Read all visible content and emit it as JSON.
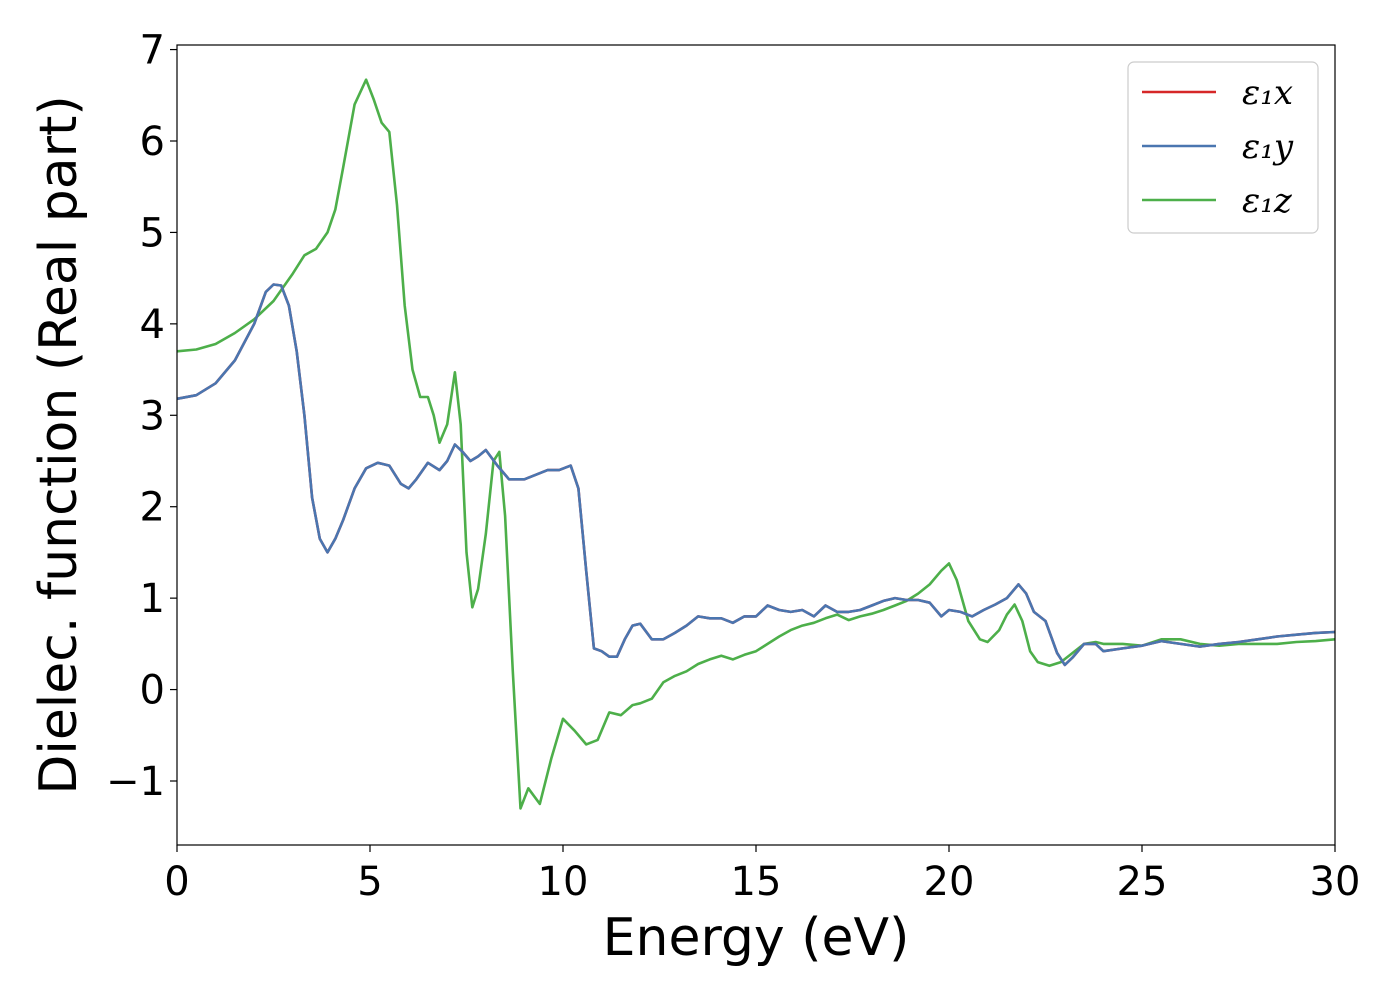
{
  "chart_data": {
    "type": "line",
    "title": "",
    "xlabel": "Energy (eV)",
    "ylabel": "Dielec. function (Real part)",
    "xlim": [
      0,
      30
    ],
    "ylim": [
      -1.7,
      7.05
    ],
    "xticks": [
      0,
      5,
      10,
      15,
      20,
      25,
      30
    ],
    "xtick_labels": [
      "0",
      "5",
      "10",
      "15",
      "20",
      "25",
      "30"
    ],
    "yticks": [
      -1,
      0,
      1,
      2,
      3,
      4,
      5,
      6,
      7
    ],
    "ytick_labels": [
      "−1",
      "0",
      "1",
      "2",
      "3",
      "4",
      "5",
      "6",
      "7"
    ],
    "grid": false,
    "legend_position": "top-right",
    "series": [
      {
        "name": "ε₁x",
        "color": "#d62728",
        "x": [
          0,
          0.5,
          1,
          1.5,
          2,
          2.3,
          2.5,
          2.7,
          2.9,
          3.1,
          3.3,
          3.5,
          3.7,
          3.9,
          4.1,
          4.3,
          4.6,
          4.9,
          5.2,
          5.5,
          5.8,
          6.0,
          6.2,
          6.5,
          6.8,
          7.0,
          7.2,
          7.4,
          7.6,
          7.8,
          8.0,
          8.3,
          8.6,
          9.0,
          9.3,
          9.6,
          9.9,
          10.2,
          10.4,
          10.6,
          10.8,
          11.0,
          11.2,
          11.4,
          11.6,
          11.8,
          12.0,
          12.3,
          12.6,
          12.9,
          13.2,
          13.5,
          13.8,
          14.1,
          14.4,
          14.7,
          15.0,
          15.3,
          15.6,
          15.9,
          16.2,
          16.5,
          16.8,
          17.1,
          17.4,
          17.7,
          18.0,
          18.3,
          18.6,
          18.9,
          19.2,
          19.5,
          19.8,
          20.0,
          20.3,
          20.6,
          20.9,
          21.2,
          21.5,
          21.8,
          22.0,
          22.2,
          22.5,
          22.8,
          23.0,
          23.2,
          23.5,
          23.8,
          24.0,
          24.5,
          25.0,
          25.5,
          26.0,
          26.5,
          27.0,
          27.5,
          28.0,
          28.5,
          29.0,
          29.5,
          30.0
        ],
        "y": [
          3.18,
          3.22,
          3.35,
          3.6,
          4.0,
          4.35,
          4.43,
          4.42,
          4.2,
          3.7,
          3.0,
          2.1,
          1.65,
          1.5,
          1.65,
          1.85,
          2.2,
          2.42,
          2.48,
          2.45,
          2.25,
          2.2,
          2.3,
          2.48,
          2.4,
          2.5,
          2.68,
          2.6,
          2.5,
          2.55,
          2.62,
          2.45,
          2.3,
          2.3,
          2.35,
          2.4,
          2.4,
          2.45,
          2.2,
          1.3,
          0.45,
          0.42,
          0.36,
          0.36,
          0.55,
          0.7,
          0.72,
          0.55,
          0.55,
          0.62,
          0.7,
          0.8,
          0.78,
          0.78,
          0.73,
          0.8,
          0.8,
          0.92,
          0.87,
          0.85,
          0.87,
          0.8,
          0.92,
          0.85,
          0.85,
          0.87,
          0.92,
          0.97,
          1.0,
          0.98,
          0.98,
          0.95,
          0.8,
          0.87,
          0.85,
          0.8,
          0.87,
          0.93,
          1.0,
          1.15,
          1.05,
          0.85,
          0.75,
          0.4,
          0.27,
          0.35,
          0.5,
          0.5,
          0.42,
          0.45,
          0.48,
          0.53,
          0.5,
          0.47,
          0.5,
          0.52,
          0.55,
          0.58,
          0.6,
          0.62,
          0.63
        ]
      },
      {
        "name": "ε₁y",
        "color": "#4a76b0",
        "x": [
          0,
          0.5,
          1,
          1.5,
          2,
          2.3,
          2.5,
          2.7,
          2.9,
          3.1,
          3.3,
          3.5,
          3.7,
          3.9,
          4.1,
          4.3,
          4.6,
          4.9,
          5.2,
          5.5,
          5.8,
          6.0,
          6.2,
          6.5,
          6.8,
          7.0,
          7.2,
          7.4,
          7.6,
          7.8,
          8.0,
          8.3,
          8.6,
          9.0,
          9.3,
          9.6,
          9.9,
          10.2,
          10.4,
          10.6,
          10.8,
          11.0,
          11.2,
          11.4,
          11.6,
          11.8,
          12.0,
          12.3,
          12.6,
          12.9,
          13.2,
          13.5,
          13.8,
          14.1,
          14.4,
          14.7,
          15.0,
          15.3,
          15.6,
          15.9,
          16.2,
          16.5,
          16.8,
          17.1,
          17.4,
          17.7,
          18.0,
          18.3,
          18.6,
          18.9,
          19.2,
          19.5,
          19.8,
          20.0,
          20.3,
          20.6,
          20.9,
          21.2,
          21.5,
          21.8,
          22.0,
          22.2,
          22.5,
          22.8,
          23.0,
          23.2,
          23.5,
          23.8,
          24.0,
          24.5,
          25.0,
          25.5,
          26.0,
          26.5,
          27.0,
          27.5,
          28.0,
          28.5,
          29.0,
          29.5,
          30.0
        ],
        "y": [
          3.18,
          3.22,
          3.35,
          3.6,
          4.0,
          4.35,
          4.43,
          4.42,
          4.2,
          3.7,
          3.0,
          2.1,
          1.65,
          1.5,
          1.65,
          1.85,
          2.2,
          2.42,
          2.48,
          2.45,
          2.25,
          2.2,
          2.3,
          2.48,
          2.4,
          2.5,
          2.68,
          2.6,
          2.5,
          2.55,
          2.62,
          2.45,
          2.3,
          2.3,
          2.35,
          2.4,
          2.4,
          2.45,
          2.2,
          1.3,
          0.45,
          0.42,
          0.36,
          0.36,
          0.55,
          0.7,
          0.72,
          0.55,
          0.55,
          0.62,
          0.7,
          0.8,
          0.78,
          0.78,
          0.73,
          0.8,
          0.8,
          0.92,
          0.87,
          0.85,
          0.87,
          0.8,
          0.92,
          0.85,
          0.85,
          0.87,
          0.92,
          0.97,
          1.0,
          0.98,
          0.98,
          0.95,
          0.8,
          0.87,
          0.85,
          0.8,
          0.87,
          0.93,
          1.0,
          1.15,
          1.05,
          0.85,
          0.75,
          0.4,
          0.27,
          0.35,
          0.5,
          0.5,
          0.42,
          0.45,
          0.48,
          0.53,
          0.5,
          0.47,
          0.5,
          0.52,
          0.55,
          0.58,
          0.6,
          0.62,
          0.63
        ]
      },
      {
        "name": "ε₁z",
        "color": "#4daf4a",
        "x": [
          0,
          0.5,
          1,
          1.5,
          2,
          2.5,
          3.0,
          3.3,
          3.6,
          3.9,
          4.1,
          4.3,
          4.6,
          4.9,
          5.1,
          5.3,
          5.5,
          5.7,
          5.9,
          6.1,
          6.3,
          6.5,
          6.65,
          6.8,
          7.0,
          7.2,
          7.35,
          7.5,
          7.65,
          7.8,
          8.0,
          8.2,
          8.35,
          8.5,
          8.7,
          8.9,
          9.1,
          9.4,
          9.7,
          10.0,
          10.3,
          10.6,
          10.9,
          11.2,
          11.5,
          11.8,
          12.0,
          12.3,
          12.6,
          12.9,
          13.2,
          13.5,
          13.8,
          14.1,
          14.4,
          14.7,
          15.0,
          15.3,
          15.6,
          15.9,
          16.2,
          16.5,
          16.8,
          17.1,
          17.4,
          17.7,
          18.0,
          18.3,
          18.6,
          18.9,
          19.2,
          19.5,
          19.8,
          20.0,
          20.2,
          20.5,
          20.8,
          21.0,
          21.3,
          21.5,
          21.7,
          21.9,
          22.1,
          22.3,
          22.6,
          22.9,
          23.2,
          23.5,
          23.8,
          24.0,
          24.5,
          25.0,
          25.5,
          26.0,
          26.5,
          27.0,
          27.5,
          28.0,
          28.5,
          29.0,
          29.5,
          30.0
        ],
        "y": [
          3.7,
          3.72,
          3.78,
          3.9,
          4.05,
          4.25,
          4.55,
          4.75,
          4.82,
          5.0,
          5.25,
          5.7,
          6.4,
          6.67,
          6.45,
          6.2,
          6.1,
          5.3,
          4.2,
          3.5,
          3.2,
          3.2,
          3.0,
          2.7,
          2.9,
          3.47,
          2.9,
          1.5,
          0.9,
          1.1,
          1.7,
          2.5,
          2.6,
          1.9,
          0.2,
          -1.3,
          -1.08,
          -1.25,
          -0.75,
          -0.32,
          -0.45,
          -0.6,
          -0.55,
          -0.25,
          -0.28,
          -0.17,
          -0.15,
          -0.1,
          0.08,
          0.15,
          0.2,
          0.28,
          0.33,
          0.37,
          0.33,
          0.38,
          0.42,
          0.5,
          0.58,
          0.65,
          0.7,
          0.73,
          0.78,
          0.82,
          0.76,
          0.8,
          0.83,
          0.87,
          0.92,
          0.97,
          1.05,
          1.15,
          1.3,
          1.38,
          1.2,
          0.75,
          0.55,
          0.52,
          0.65,
          0.82,
          0.93,
          0.75,
          0.42,
          0.3,
          0.26,
          0.3,
          0.4,
          0.5,
          0.52,
          0.5,
          0.5,
          0.48,
          0.55,
          0.55,
          0.5,
          0.48,
          0.5,
          0.5,
          0.5,
          0.52,
          0.53,
          0.55
        ]
      }
    ]
  }
}
